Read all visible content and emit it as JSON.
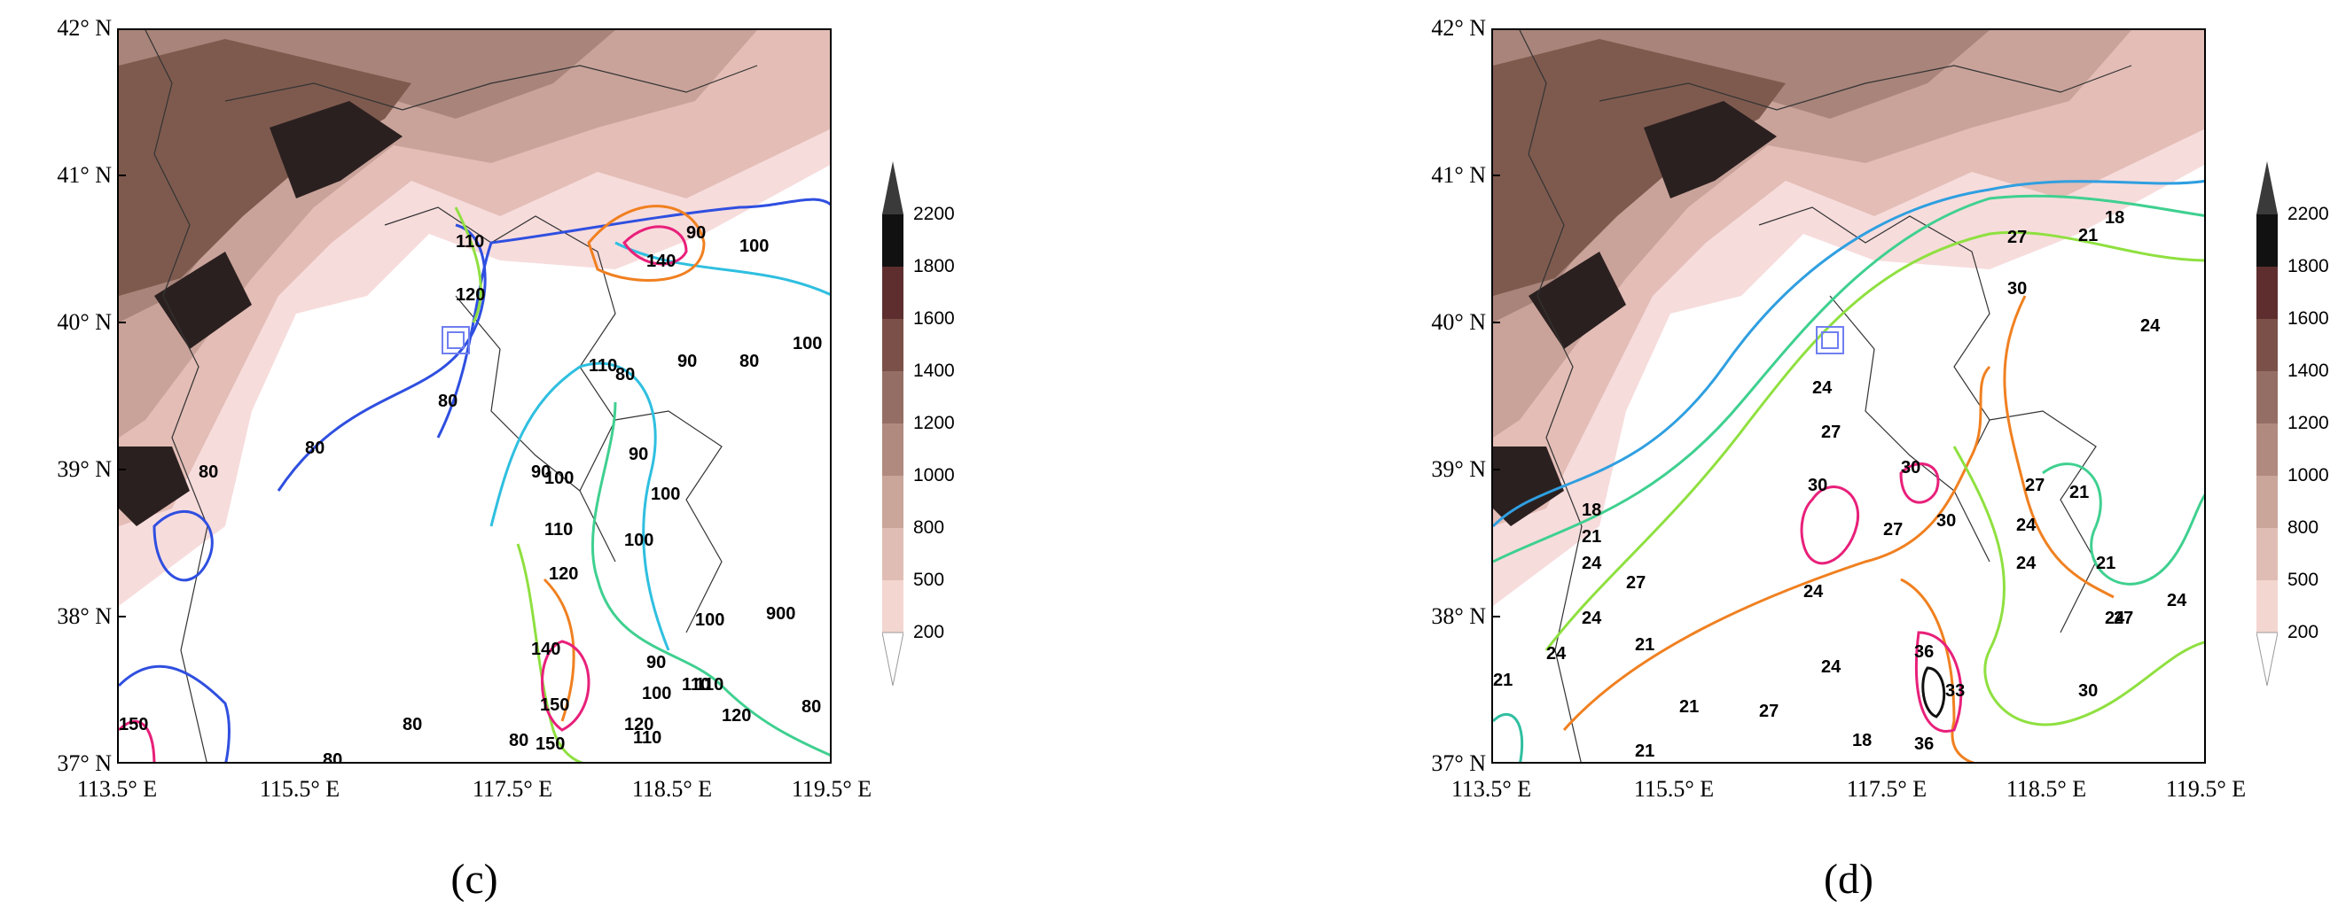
{
  "panels": [
    {
      "id": "c",
      "label": "(c)",
      "y_ticks": [
        "42° N",
        "41° N",
        "40° N",
        "39° N",
        "38° N",
        "37° N"
      ],
      "x_ticks": [
        "113.5° E",
        "115.5° E",
        "117.5° E",
        "118.5° E",
        "119.5° E"
      ],
      "colorbar_labels": [
        "2200",
        "1800",
        "1600",
        "1400",
        "1200",
        "1000",
        "800",
        "500",
        "200"
      ],
      "contour_labels": [
        "80",
        "80",
        "80",
        "80",
        "80",
        "80",
        "80",
        "80",
        "90",
        "90",
        "90",
        "90",
        "90",
        "100",
        "100",
        "100",
        "100",
        "100",
        "100",
        "110",
        "110",
        "110",
        "110",
        "120",
        "120",
        "120",
        "140",
        "140",
        "150",
        "150",
        "120",
        "110",
        "100",
        "80",
        "900",
        "110",
        "150"
      ]
    },
    {
      "id": "d",
      "label": "(d)",
      "y_ticks": [
        "42° N",
        "41° N",
        "40° N",
        "39° N",
        "38° N",
        "37° N"
      ],
      "x_ticks": [
        "113.5° E",
        "115.5° E",
        "117.5° E",
        "118.5° E",
        "119.5° E"
      ],
      "colorbar_labels": [
        "2200",
        "1800",
        "1600",
        "1400",
        "1200",
        "1000",
        "800",
        "500",
        "200"
      ],
      "contour_labels": [
        "18",
        "18",
        "21",
        "21",
        "21",
        "21",
        "21",
        "21",
        "21",
        "24",
        "24",
        "24",
        "24",
        "24",
        "24",
        "24",
        "24",
        "24",
        "24",
        "24",
        "27",
        "27",
        "27",
        "27",
        "27",
        "27",
        "27",
        "30",
        "30",
        "30",
        "30",
        "30",
        "33",
        "36",
        "36",
        "18",
        "21"
      ]
    }
  ],
  "colors": {
    "terrain_low": "#f7dcdc",
    "terrain_mid": "#c9a39a",
    "terrain_high": "#6e4a3e",
    "terrain_peak": "#1a1a1a"
  }
}
